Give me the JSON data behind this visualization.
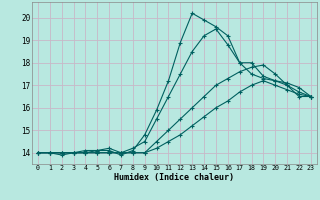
{
  "title": "",
  "xlabel": "Humidex (Indice chaleur)",
  "xlim": [
    -0.5,
    23.5
  ],
  "ylim": [
    13.5,
    20.7
  ],
  "xticks": [
    0,
    1,
    2,
    3,
    4,
    5,
    6,
    7,
    8,
    9,
    10,
    11,
    12,
    13,
    14,
    15,
    16,
    17,
    18,
    19,
    20,
    21,
    22,
    23
  ],
  "yticks": [
    14,
    15,
    16,
    17,
    18,
    19,
    20
  ],
  "bg_color": "#b8e8e0",
  "grid_color": "#c8b8c8",
  "line_color": "#006060",
  "lines": [
    [
      14.0,
      14.0,
      13.9,
      14.0,
      14.1,
      14.1,
      14.1,
      13.9,
      14.1,
      14.8,
      15.9,
      17.2,
      18.9,
      20.2,
      19.9,
      19.6,
      19.2,
      18.0,
      18.0,
      17.4,
      17.2,
      17.0,
      16.5,
      16.5
    ],
    [
      14.0,
      14.0,
      14.0,
      14.0,
      14.0,
      14.1,
      14.2,
      14.0,
      14.2,
      14.5,
      15.5,
      16.5,
      17.5,
      18.5,
      19.2,
      19.5,
      18.8,
      18.0,
      17.5,
      17.3,
      17.2,
      17.1,
      16.9,
      16.5
    ],
    [
      14.0,
      14.0,
      14.0,
      14.0,
      14.0,
      14.0,
      14.0,
      14.0,
      14.0,
      14.0,
      14.5,
      15.0,
      15.5,
      16.0,
      16.5,
      17.0,
      17.3,
      17.6,
      17.8,
      17.9,
      17.5,
      17.0,
      16.7,
      16.5
    ],
    [
      14.0,
      14.0,
      14.0,
      14.0,
      14.0,
      14.0,
      14.0,
      14.0,
      14.0,
      14.0,
      14.2,
      14.5,
      14.8,
      15.2,
      15.6,
      16.0,
      16.3,
      16.7,
      17.0,
      17.2,
      17.0,
      16.8,
      16.6,
      16.5
    ]
  ]
}
